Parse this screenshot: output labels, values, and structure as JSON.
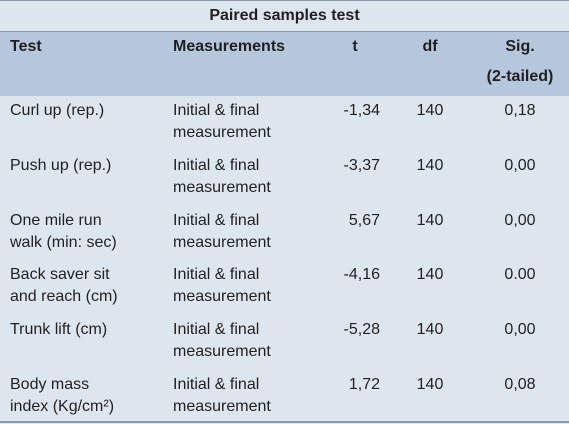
{
  "table": {
    "title": "Paired samples test",
    "columns": {
      "test": "Test",
      "measurements": "Measurements",
      "t": "t",
      "df": "df",
      "sig_line1": "Sig.",
      "sig_line2": "(2-tailed)"
    },
    "rows": [
      {
        "test": [
          "Curl up (rep.)",
          ""
        ],
        "meas": [
          "Initial & final",
          "measurement"
        ],
        "t": "-1,34",
        "df": "140",
        "sig": "0,18"
      },
      {
        "test": [
          "Push up (rep.)",
          ""
        ],
        "meas": [
          "Initial & final",
          "measurement"
        ],
        "t": "-3,37",
        "df": "140",
        "sig": "0,00"
      },
      {
        "test": [
          "One mile run",
          "walk (min: sec)"
        ],
        "meas": [
          "Initial & final",
          "measurement"
        ],
        "t": "5,67",
        "df": "140",
        "sig": "0,00"
      },
      {
        "test": [
          "Back saver sit",
          "and reach (cm)"
        ],
        "meas": [
          "Initial & final",
          "measurement"
        ],
        "t": "-4,16",
        "df": "140",
        "sig": "0.00"
      },
      {
        "test": [
          "Trunk lift (cm)",
          ""
        ],
        "meas": [
          "Initial & final",
          "measurement"
        ],
        "t": "-5,28",
        "df": "140",
        "sig": "0,00"
      },
      {
        "test": [
          "Body mass",
          "index (Kg/cm²)"
        ],
        "meas": [
          "Initial & final",
          "measurement"
        ],
        "t": "1,72",
        "df": "140",
        "sig": "0,08"
      }
    ]
  }
}
